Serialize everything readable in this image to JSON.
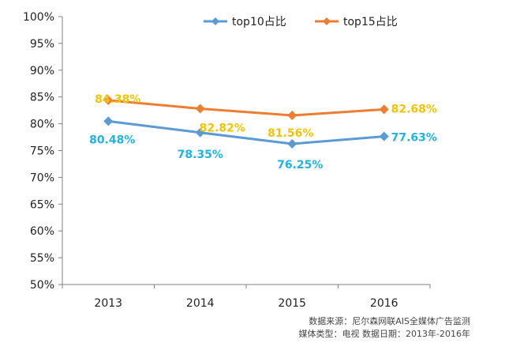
{
  "chart_data": {
    "type": "line",
    "categories": [
      "2013",
      "2014",
      "2015",
      "2016"
    ],
    "series": [
      {
        "name": "top10占比",
        "color": "#5B9BD5",
        "label_color": "#1CB5E6",
        "values": [
          80.48,
          78.35,
          76.25,
          77.63
        ],
        "labels": [
          "80.48%",
          "78.35%",
          "76.25%",
          "77.63%"
        ]
      },
      {
        "name": "top15占比",
        "color": "#ED7D31",
        "label_color": "#F2C300",
        "values": [
          84.38,
          82.82,
          81.56,
          82.68
        ],
        "labels": [
          "84.38%",
          "82.82%",
          "81.56%",
          "82.68%"
        ]
      }
    ],
    "ylim": [
      50,
      100
    ],
    "yticks": [
      "50%",
      "55%",
      "60%",
      "65%",
      "70%",
      "75%",
      "80%",
      "85%",
      "90%",
      "95%",
      "100%"
    ],
    "legend_position": "top-center",
    "grid": false
  },
  "source": {
    "line1": "数据来源：尼尔森网联AIS全媒体广告监测",
    "line2": "媒体类型：电视  数据日期：2013年-2016年"
  }
}
